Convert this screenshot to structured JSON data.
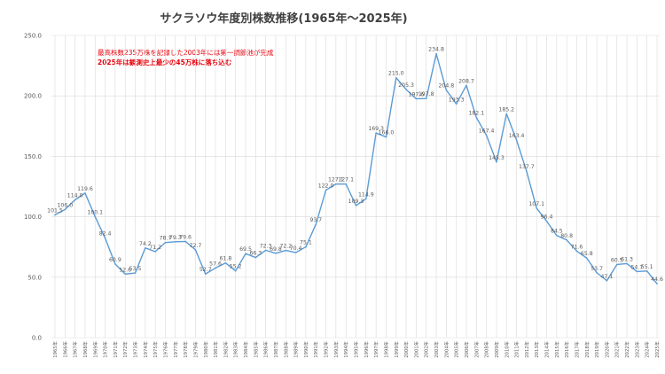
{
  "title": "サクラソウ年度別株数推移(1965年～2025年)",
  "annotation": {
    "line1": "最高株数235万株を記録した2003年には第一調節池が完成",
    "line2": "2025年は観測史上最少の45万株に落ち込む"
  },
  "colors": {
    "line": "#5b9bd5",
    "annotation": "#e8000b",
    "grid": "#d9d9d9",
    "text": "#595959"
  },
  "chart_data": {
    "type": "line",
    "title": "サクラソウ年度別株数推移(1965年～2025年)",
    "xlabel": "",
    "ylabel": "",
    "ylim": [
      0,
      250
    ],
    "yticks": [
      "0.0",
      "50.0",
      "100.0",
      "150.0",
      "200.0",
      "250.0"
    ],
    "grid": true,
    "legend": "none",
    "categories": [
      "1965年",
      "1966年",
      "1967年",
      "1968年",
      "1969年",
      "1970年",
      "1971年",
      "1972年",
      "1973年",
      "1974年",
      "1975年",
      "1976年",
      "1977年",
      "1978年",
      "1979年",
      "1980年",
      "1981年",
      "1982年",
      "1983年",
      "1984年",
      "1985年",
      "1986年",
      "1987年",
      "1988年",
      "1989年",
      "1990年",
      "1991年",
      "1992年",
      "1993年",
      "1994年",
      "1995年",
      "1996年",
      "1997年",
      "1998年",
      "1999年",
      "2000年",
      "2001年",
      "2002年",
      "2003年",
      "2004年",
      "2005年",
      "2006年",
      "2007年",
      "2008年",
      "2009年",
      "2010年",
      "2011年",
      "2012年",
      "2013年",
      "2014年",
      "2015年",
      "2016年",
      "2017年",
      "2018年",
      "2019年",
      "2020年",
      "2021年",
      "2022年",
      "2023年",
      "2024年",
      "2025年"
    ],
    "series": [
      {
        "values": [
          101.5,
          106.0,
          114.0,
          119.6,
          100.1,
          82.4,
          60.9,
          52.6,
          53.5,
          74.2,
          71.2,
          78.7,
          79.3,
          79.6,
          72.7,
          52.7,
          57.6,
          61.8,
          55.2,
          69.5,
          66.3,
          72.3,
          69.8,
          72.2,
          70.4,
          75.1,
          93.7,
          122.0,
          127.1,
          127.1,
          109.3,
          114.9,
          169.3,
          166.0,
          215.0,
          205.3,
          197.6,
          197.8,
          234.8,
          204.8,
          193.3,
          208.7,
          182.1,
          167.4,
          145.3,
          185.2,
          163.4,
          137.7,
          107.1,
          96.4,
          84.5,
          80.8,
          71.6,
          65.8,
          53.7,
          47.1,
          60.5,
          61.3,
          54.7,
          55.1,
          44.6
        ],
        "labels": [
          "101.5",
          "106.0",
          "114.0",
          "119.6",
          "100.1",
          "82.4",
          "60.9",
          "52.6",
          "53.5",
          "74.2",
          "71.2",
          "78.7",
          "79.3",
          "79.6",
          "72.7",
          "52.7",
          "57.6",
          "61.8",
          "55.2",
          "69.5",
          "66.3",
          "72.3",
          "69.8",
          "72.2",
          "70.4",
          "75.1",
          "93.7",
          "122.0",
          "127.1",
          "127.1",
          "109.3",
          "114.9",
          "169.3",
          "166.0",
          "215.0",
          "205.3",
          "197.6",
          "197.8",
          "234.8",
          "204.8",
          "193.3",
          "208.7",
          "182.1",
          "167.4",
          "145.3",
          "185.2",
          "163.4",
          "137.7",
          "107.1",
          "96.4",
          "84.5",
          "80.8",
          "71.6",
          "65.8",
          "53.7",
          "47.1",
          "60.5",
          "61.3",
          "54.7",
          "55.1",
          "44.6"
        ]
      }
    ]
  }
}
